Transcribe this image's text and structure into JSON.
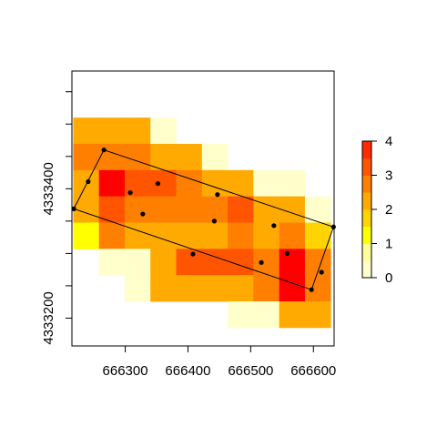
{
  "chart_data": {
    "type": "heatmap",
    "title": "",
    "xlabel": "",
    "ylabel": "",
    "xlim": [
      666215,
      666633
    ],
    "ylim": [
      4333157,
      4333582
    ],
    "xticks": [
      666300,
      666400,
      666500,
      666600
    ],
    "yticks": [
      4333200,
      4333400
    ],
    "xtick_labels": [
      "666300",
      "666400",
      "666500",
      "666600"
    ],
    "ytick_labels": [
      "4333200",
      "4333400"
    ],
    "grid": false,
    "legend": "right",
    "palette": [
      "#FFFFCC",
      "#FFFF99",
      "#FFFF00",
      "#FFD400",
      "#FFAA00",
      "#FF8000",
      "#FF5500",
      "#FF2A00",
      "#FF0000"
    ],
    "color_breaks": [
      0,
      0.5,
      1,
      1.5,
      2,
      2.5,
      3,
      3.5,
      4
    ],
    "colorbar": {
      "min": 0,
      "max": 4,
      "ticks": [
        0,
        1,
        2,
        3,
        4
      ],
      "tick_labels": [
        "0",
        "1",
        "2",
        "3",
        "4"
      ]
    },
    "raster": {
      "x0": 666217,
      "y_top": 4333510,
      "cell_width": 41.05,
      "cell_height": 40.58,
      "rows": [
        [
          2,
          2,
          2,
          0.3,
          null,
          null,
          null,
          null,
          null,
          null
        ],
        [
          2.8,
          2.8,
          2.8,
          2,
          2,
          0.3,
          null,
          null,
          null,
          null
        ],
        [
          2,
          4,
          3,
          3,
          2.8,
          2,
          2,
          0.3,
          0.3,
          null
        ],
        [
          2,
          3,
          2.8,
          2.8,
          2.8,
          2.8,
          3,
          2,
          2,
          0.3
        ],
        [
          1.2,
          2.8,
          2,
          2,
          2,
          2,
          2.8,
          2,
          2.8,
          1.8
        ],
        [
          null,
          0.3,
          0.3,
          2,
          3,
          3,
          3,
          2.8,
          4,
          2.8
        ],
        [
          null,
          null,
          0.3,
          2,
          2,
          2,
          2,
          2.8,
          4,
          2.8
        ],
        [
          null,
          null,
          null,
          null,
          null,
          null,
          0.3,
          0.3,
          2,
          2
        ]
      ]
    },
    "polygon": [
      [
        666266,
        4333460
      ],
      [
        666632,
        4333341
      ],
      [
        666597,
        4333244
      ],
      [
        666218,
        4333369
      ]
    ],
    "points": [
      [
        666218,
        4333369
      ],
      [
        666241,
        4333411
      ],
      [
        666266,
        4333460
      ],
      [
        666308,
        4333394
      ],
      [
        666352,
        4333408
      ],
      [
        666447,
        4333391
      ],
      [
        666328,
        4333361
      ],
      [
        666442,
        4333350
      ],
      [
        666537,
        4333343
      ],
      [
        666408,
        4333299
      ],
      [
        666517,
        4333286
      ],
      [
        666558,
        4333300
      ],
      [
        666613,
        4333271
      ],
      [
        666597,
        4333244
      ],
      [
        666632,
        4333341
      ]
    ]
  }
}
